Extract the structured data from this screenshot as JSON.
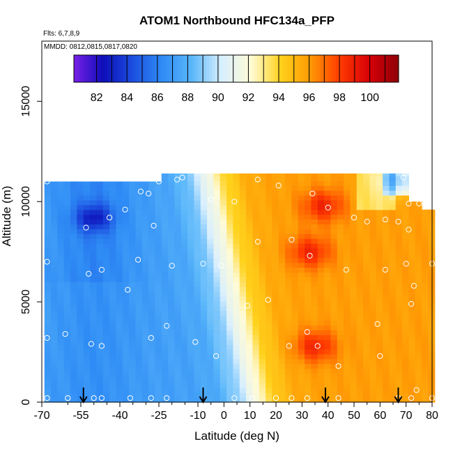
{
  "chart_data": {
    "type": "heatmap",
    "title": "ATOM1 Northbound HFC134a_PFP",
    "notes": {
      "flights": "Flts: 6,7,8,9",
      "dates": "MMDD: 0812,0815,0817,0820"
    },
    "xlabel": "Latitude (deg N)",
    "ylabel": "Altitude (m)",
    "xlim": [
      -70,
      80
    ],
    "ylim": [
      0,
      18000
    ],
    "x_ticks": [
      "-70",
      "-55",
      "-40",
      "-25",
      "-10",
      "0",
      "10",
      "20",
      "30",
      "40",
      "50",
      "60",
      "70",
      "80"
    ],
    "x_minor_ticks": [
      -60,
      -50,
      -45,
      -35,
      -30,
      -20,
      -15,
      -5,
      5,
      15,
      25,
      35,
      45,
      55,
      65,
      75
    ],
    "y_ticks": [
      0,
      5000,
      10000,
      15000
    ],
    "colorbar": {
      "ticks": [
        "82",
        "84",
        "86",
        "88",
        "90",
        "92",
        "94",
        "96",
        "98",
        "100"
      ],
      "range": [
        80.5,
        101.9
      ],
      "colors": [
        "#7a1fe6",
        "#0d0eb8",
        "#1c4fe0",
        "#2f8cf5",
        "#5ab7fa",
        "#d8efff",
        "#fffbd6",
        "#ffd21c",
        "#ff9a05",
        "#ff3b00",
        "#d70008",
        "#8e0008"
      ]
    },
    "field_description": "curtain of HFC134a mixing ratio; blue south, yellow/orange north",
    "high_cores": [
      {
        "lat": 35,
        "alt": 2800,
        "value": 99
      },
      {
        "lat": 33,
        "alt": 7500,
        "value": 99
      },
      {
        "lat": 38,
        "alt": 9800,
        "value": 99
      }
    ],
    "low_cores": [
      {
        "lat": -50,
        "alt": 9200,
        "value": 84
      },
      {
        "lat": 68,
        "alt": 11100,
        "value": 84
      }
    ],
    "sample_points": [
      [
        -68,
        11000
      ],
      [
        -68,
        7000
      ],
      [
        -68,
        3200
      ],
      [
        -68,
        200
      ],
      [
        -61,
        3400
      ],
      [
        -60,
        200
      ],
      [
        -53,
        8700
      ],
      [
        -52,
        6400
      ],
      [
        -51,
        2900
      ],
      [
        -50,
        200
      ],
      [
        -47,
        6600
      ],
      [
        -47,
        2800
      ],
      [
        -47,
        200
      ],
      [
        -44,
        9200
      ],
      [
        -38,
        9600
      ],
      [
        -37,
        5600
      ],
      [
        -36,
        200
      ],
      [
        -33,
        7100
      ],
      [
        -32,
        10500
      ],
      [
        -29,
        10400
      ],
      [
        -28,
        3200
      ],
      [
        -28,
        200
      ],
      [
        -27,
        8800
      ],
      [
        -25,
        11000
      ],
      [
        -22,
        200
      ],
      [
        -22,
        3800
      ],
      [
        -20,
        6800
      ],
      [
        -18,
        11100
      ],
      [
        -16,
        11200
      ],
      [
        -11,
        3000
      ],
      [
        -8,
        6900
      ],
      [
        -5,
        10100
      ],
      [
        -3,
        2300
      ],
      [
        -1,
        6800
      ],
      [
        4,
        200
      ],
      [
        4,
        10000
      ],
      [
        9,
        4800
      ],
      [
        11,
        200
      ],
      [
        13,
        11100
      ],
      [
        13,
        8000
      ],
      [
        17,
        5100
      ],
      [
        20,
        200
      ],
      [
        21,
        10800
      ],
      [
        25,
        2800
      ],
      [
        26,
        8100
      ],
      [
        26,
        200
      ],
      [
        32,
        200
      ],
      [
        32,
        3500
      ],
      [
        33,
        7300
      ],
      [
        34,
        10400
      ],
      [
        36,
        2800
      ],
      [
        40,
        9700
      ],
      [
        44,
        1800
      ],
      [
        44,
        200
      ],
      [
        47,
        6600
      ],
      [
        50,
        9200
      ],
      [
        55,
        9000
      ],
      [
        59,
        3900
      ],
      [
        60,
        2300
      ],
      [
        62,
        6600
      ],
      [
        62,
        9100
      ],
      [
        67,
        200
      ],
      [
        67,
        9000
      ],
      [
        69,
        11200
      ],
      [
        70,
        6900
      ],
      [
        71,
        8600
      ],
      [
        71,
        9900
      ],
      [
        72,
        4900
      ],
      [
        72,
        200
      ],
      [
        73,
        5800
      ],
      [
        74,
        600
      ],
      [
        75,
        9900
      ],
      [
        80,
        200
      ],
      [
        80,
        6900
      ]
    ],
    "flight_arrows": [
      -54,
      -8,
      39,
      67
    ]
  }
}
